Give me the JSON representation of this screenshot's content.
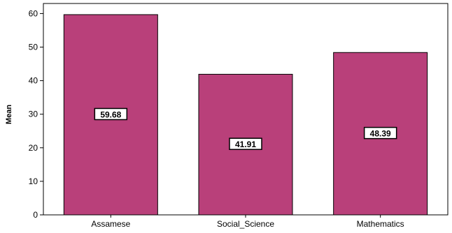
{
  "chart_data": {
    "type": "bar",
    "title": "",
    "xlabel": "",
    "ylabel": "Mean",
    "categories": [
      "Assamese",
      "Social_Science",
      "Mathematics"
    ],
    "values": [
      59.68,
      41.91,
      48.39
    ],
    "data_labels": [
      "59.68",
      "41.91",
      "48.39"
    ],
    "ylim": [
      0,
      63
    ],
    "yticks": [
      0,
      10,
      20,
      30,
      40,
      50,
      60
    ],
    "ytick_labels": [
      "0",
      "10",
      "20",
      "30",
      "40",
      "50",
      "60"
    ],
    "grid": false,
    "legend": "none",
    "bar_color": "#b9407a",
    "bar_edge_color": "#000000"
  }
}
